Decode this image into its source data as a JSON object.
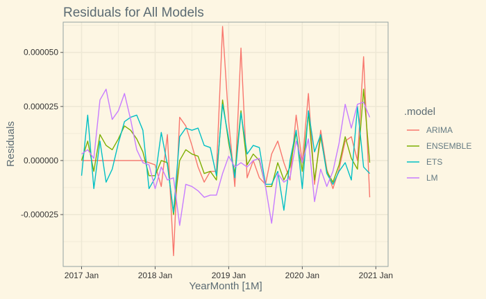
{
  "chart_data": {
    "type": "line",
    "title": "Residuals for All Models",
    "xlabel": "YearMonth [1M]",
    "ylabel": "Residuals",
    "x_start": "2017-01",
    "x_ticks": [
      "2017 Jan",
      "2018 Jan",
      "2019 Jan",
      "2020 Jan",
      "2021 Jan"
    ],
    "xlim": [
      "2016-10",
      "2021-03"
    ],
    "y_ticks": [
      -2.5e-05,
      0,
      2.5e-05,
      5e-05
    ],
    "y_tick_labels": [
      "-0.000025",
      "0.000000",
      "0.000025",
      "0.000050"
    ],
    "ylim": [
      -4.9e-05,
      6.4e-05
    ],
    "grid": true,
    "legend_title": ".model",
    "legend_position": "right",
    "series": [
      {
        "name": "ARIMA",
        "color": "#f8766d",
        "values": [
          0.0,
          0.0,
          0.0,
          0.0,
          0.0,
          0.0,
          0.0,
          0.0,
          0.0,
          0.0,
          0.0,
          -1e-06,
          -2e-06,
          -1.2e-05,
          1.2e-05,
          -4.4e-05,
          2e-05,
          1.6e-05,
          7e-06,
          -3e-06,
          -1e-05,
          -5e-06,
          -5e-06,
          6.2e-05,
          1.8e-05,
          -1.2e-05,
          5.2e-05,
          -8e-06,
          0.0,
          -8e-06,
          -1.1e-05,
          3e-06,
          9e-06,
          -1e-06,
          -9e-06,
          2.1e-05,
          -1e-06,
          3.1e-05,
          -1.1e-05,
          1.4e-05,
          -4e-06,
          -1.3e-05,
          -4e-06,
          9e-06,
          1.1e-05,
          0.0,
          4.8e-05,
          -1.7e-05
        ]
      },
      {
        "name": "ENSEMBLE",
        "color": "#7cae00",
        "values": [
          0.0,
          9e-06,
          -5e-06,
          1.2e-05,
          7e-06,
          5e-06,
          1e-05,
          1.6e-05,
          1.4e-05,
          1e-05,
          4e-06,
          -7e-06,
          -7e-06,
          0.0,
          -1e-06,
          -2.5e-05,
          0.0,
          5e-06,
          3e-06,
          2e-06,
          -6e-06,
          -5e-06,
          -9e-06,
          2.8e-05,
          8e-06,
          -6e-06,
          2.3e-05,
          -2e-06,
          3e-06,
          0.0,
          -1.2e-05,
          -1.2e-05,
          -1e-06,
          -9e-06,
          -3e-06,
          1.3e-05,
          -5e-06,
          2.2e-05,
          -9e-06,
          1.1e-05,
          -5e-06,
          -1e-05,
          -2e-06,
          1.1e-05,
          1e-06,
          -4e-06,
          3.3e-05,
          -1e-06
        ]
      },
      {
        "name": "ETS",
        "color": "#00bfc4",
        "values": [
          -7e-06,
          2.1e-05,
          -1.3e-05,
          9e-06,
          -1e-05,
          -4e-06,
          8e-06,
          1.8e-05,
          2e-05,
          2.1e-05,
          1.4e-05,
          -1.3e-05,
          -8e-06,
          1.3e-05,
          -2e-06,
          -2.4e-05,
          1.1e-05,
          1.5e-05,
          1.4e-05,
          1.5e-05,
          7e-06,
          6e-06,
          -7e-06,
          2.6e-05,
          1e-05,
          -8e-06,
          2.2e-05,
          3e-06,
          7e-06,
          6e-06,
          -1.1e-05,
          -1.1e-05,
          -5e-06,
          -2.3e-05,
          0.0,
          1.4e-05,
          -1.3e-05,
          2.3e-05,
          4e-06,
          1.2e-05,
          -6e-06,
          -1.1e-05,
          -5e-06,
          -1e-06,
          -9e-06,
          2.5e-05,
          -3e-06,
          -6e-06
        ]
      },
      {
        "name": "LM",
        "color": "#c77cff",
        "values": [
          3e-06,
          5e-06,
          1e-06,
          2.8e-05,
          3.3e-05,
          1.9e-05,
          2.3e-05,
          3.1e-05,
          1.9e-05,
          5e-06,
          -1e-06,
          -2e-06,
          -1.3e-05,
          -3e-06,
          -9e-06,
          -8e-06,
          -3e-05,
          -1.1e-05,
          -1.2e-05,
          -1.4e-05,
          -1.7e-05,
          -1.6e-05,
          -1.6e-05,
          -6e-06,
          2e-06,
          -3e-06,
          -1e-06,
          -3e-06,
          0.0,
          1e-06,
          -1.2e-05,
          -2.9e-05,
          -6e-06,
          -1e-05,
          -8e-06,
          9e-06,
          -1e-06,
          1e-05,
          -1.9e-05,
          -4e-06,
          -1.2e-05,
          -5e-06,
          8e-06,
          2.6e-05,
          1.5e-05,
          2.6e-05,
          2.7e-05,
          2e-05
        ]
      }
    ]
  }
}
